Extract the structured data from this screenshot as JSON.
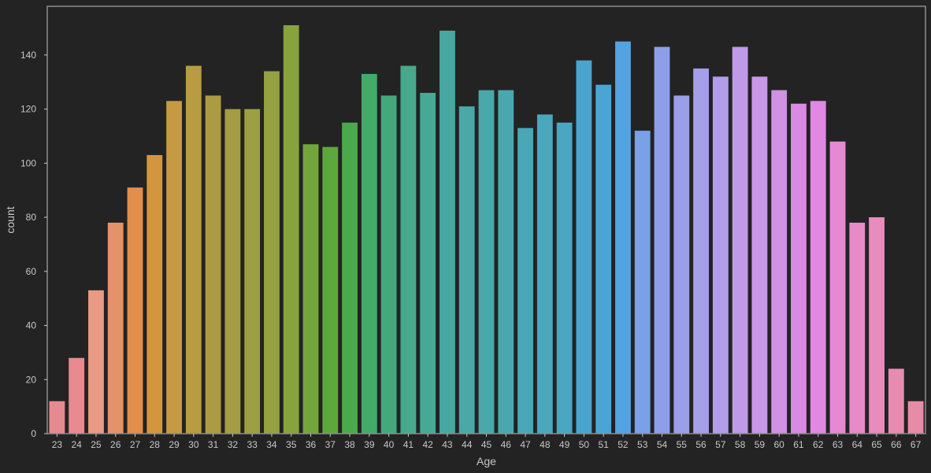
{
  "chart_data": {
    "type": "bar",
    "title": "",
    "xlabel": "Age",
    "ylabel": "count",
    "ylim": [
      0,
      158
    ],
    "yticks": [
      0,
      20,
      40,
      60,
      80,
      100,
      120,
      140
    ],
    "grid": false,
    "background": "#232323",
    "categories": [
      "23",
      "24",
      "25",
      "26",
      "27",
      "28",
      "29",
      "30",
      "31",
      "32",
      "33",
      "34",
      "35",
      "36",
      "37",
      "38",
      "39",
      "40",
      "41",
      "42",
      "43",
      "44",
      "45",
      "46",
      "47",
      "48",
      "49",
      "50",
      "51",
      "52",
      "53",
      "54",
      "55",
      "56",
      "57",
      "58",
      "59",
      "60",
      "61",
      "62",
      "63",
      "64",
      "65",
      "66",
      "67"
    ],
    "values": [
      12,
      28,
      53,
      78,
      91,
      103,
      123,
      136,
      125,
      120,
      120,
      134,
      151,
      107,
      106,
      115,
      133,
      125,
      136,
      126,
      149,
      121,
      127,
      127,
      113,
      118,
      115,
      138,
      129,
      145,
      112,
      143,
      125,
      135,
      132,
      143,
      132,
      127,
      122,
      123,
      108,
      78,
      80,
      24,
      12
    ],
    "colors": [
      "#e68a8f",
      "#e88a8f",
      "#e99a84",
      "#e4926a",
      "#e28e4c",
      "#d3963f",
      "#c59a42",
      "#b89b42",
      "#ad9b43",
      "#a59d43",
      "#9d9f43",
      "#96a142",
      "#86a33d",
      "#72a63c",
      "#5da83c",
      "#4aa94a",
      "#43aa68",
      "#43a97d",
      "#46a98b",
      "#48a896",
      "#47a8a1",
      "#4aa8a7",
      "#4aa8ab",
      "#4aa7b0",
      "#4aa7b6",
      "#4aa7bc",
      "#4aa6c2",
      "#49a5cd",
      "#4aa5d7",
      "#53a3e0",
      "#7aa0e6",
      "#8d9fe9",
      "#9a9fea",
      "#a59ee8",
      "#b29de9",
      "#bf9ae8",
      "#c897e6",
      "#d191e5",
      "#d98ae4",
      "#e189e2",
      "#e589d2",
      "#e68bc7",
      "#e78cbd",
      "#e78cb0",
      "#e68ca6"
    ]
  }
}
